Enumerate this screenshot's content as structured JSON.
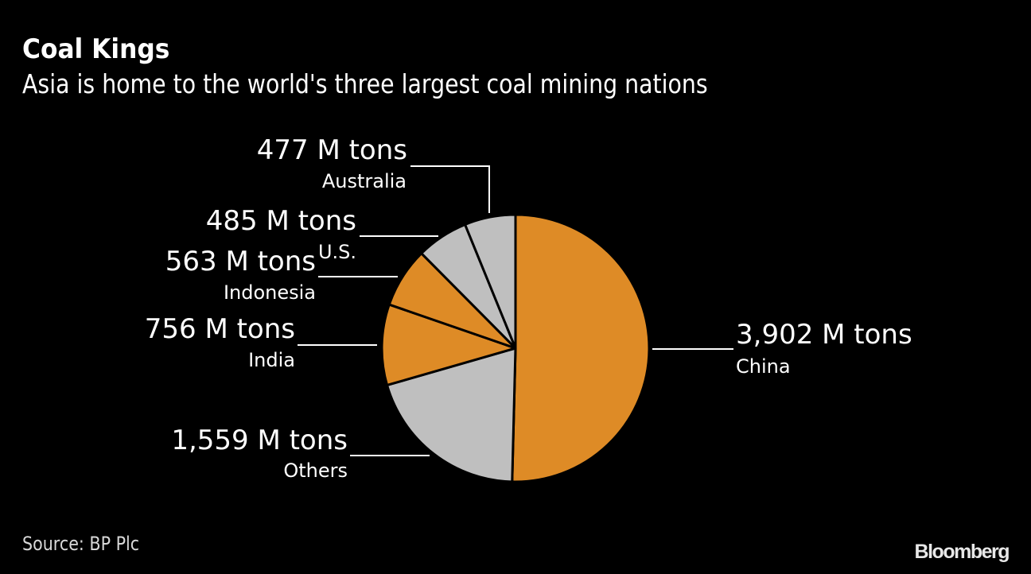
{
  "header": {
    "title": "Coal Kings",
    "subtitle": "Asia is home to the world's three largest coal mining nations"
  },
  "footer": {
    "source": "Source: BP Plc",
    "brand": "Bloomberg"
  },
  "colors": {
    "background": "#000000",
    "orange": "#DE8B26",
    "gray": "#BFBFBF",
    "text": "#FFFFFF"
  },
  "chart_data": {
    "type": "pie",
    "title": "Coal Kings",
    "subtitle": "Asia is home to the world's three largest coal mining nations",
    "unit": "M tons",
    "start_angle": "12 o'clock, clockwise",
    "categories": [
      "China",
      "Others",
      "India",
      "Indonesia",
      "U.S.",
      "Australia"
    ],
    "values": [
      3902,
      1559,
      756,
      563,
      485,
      477
    ],
    "value_labels": [
      "3,902 M tons",
      "1,559 M tons",
      "756 M tons",
      "563 M tons",
      "485 M tons",
      "477 M tons"
    ],
    "slice_colors": [
      "#DE8B26",
      "#BFBFBF",
      "#DE8B26",
      "#DE8B26",
      "#BFBFBF",
      "#BFBFBF"
    ],
    "source": "Source: BP Plc"
  }
}
